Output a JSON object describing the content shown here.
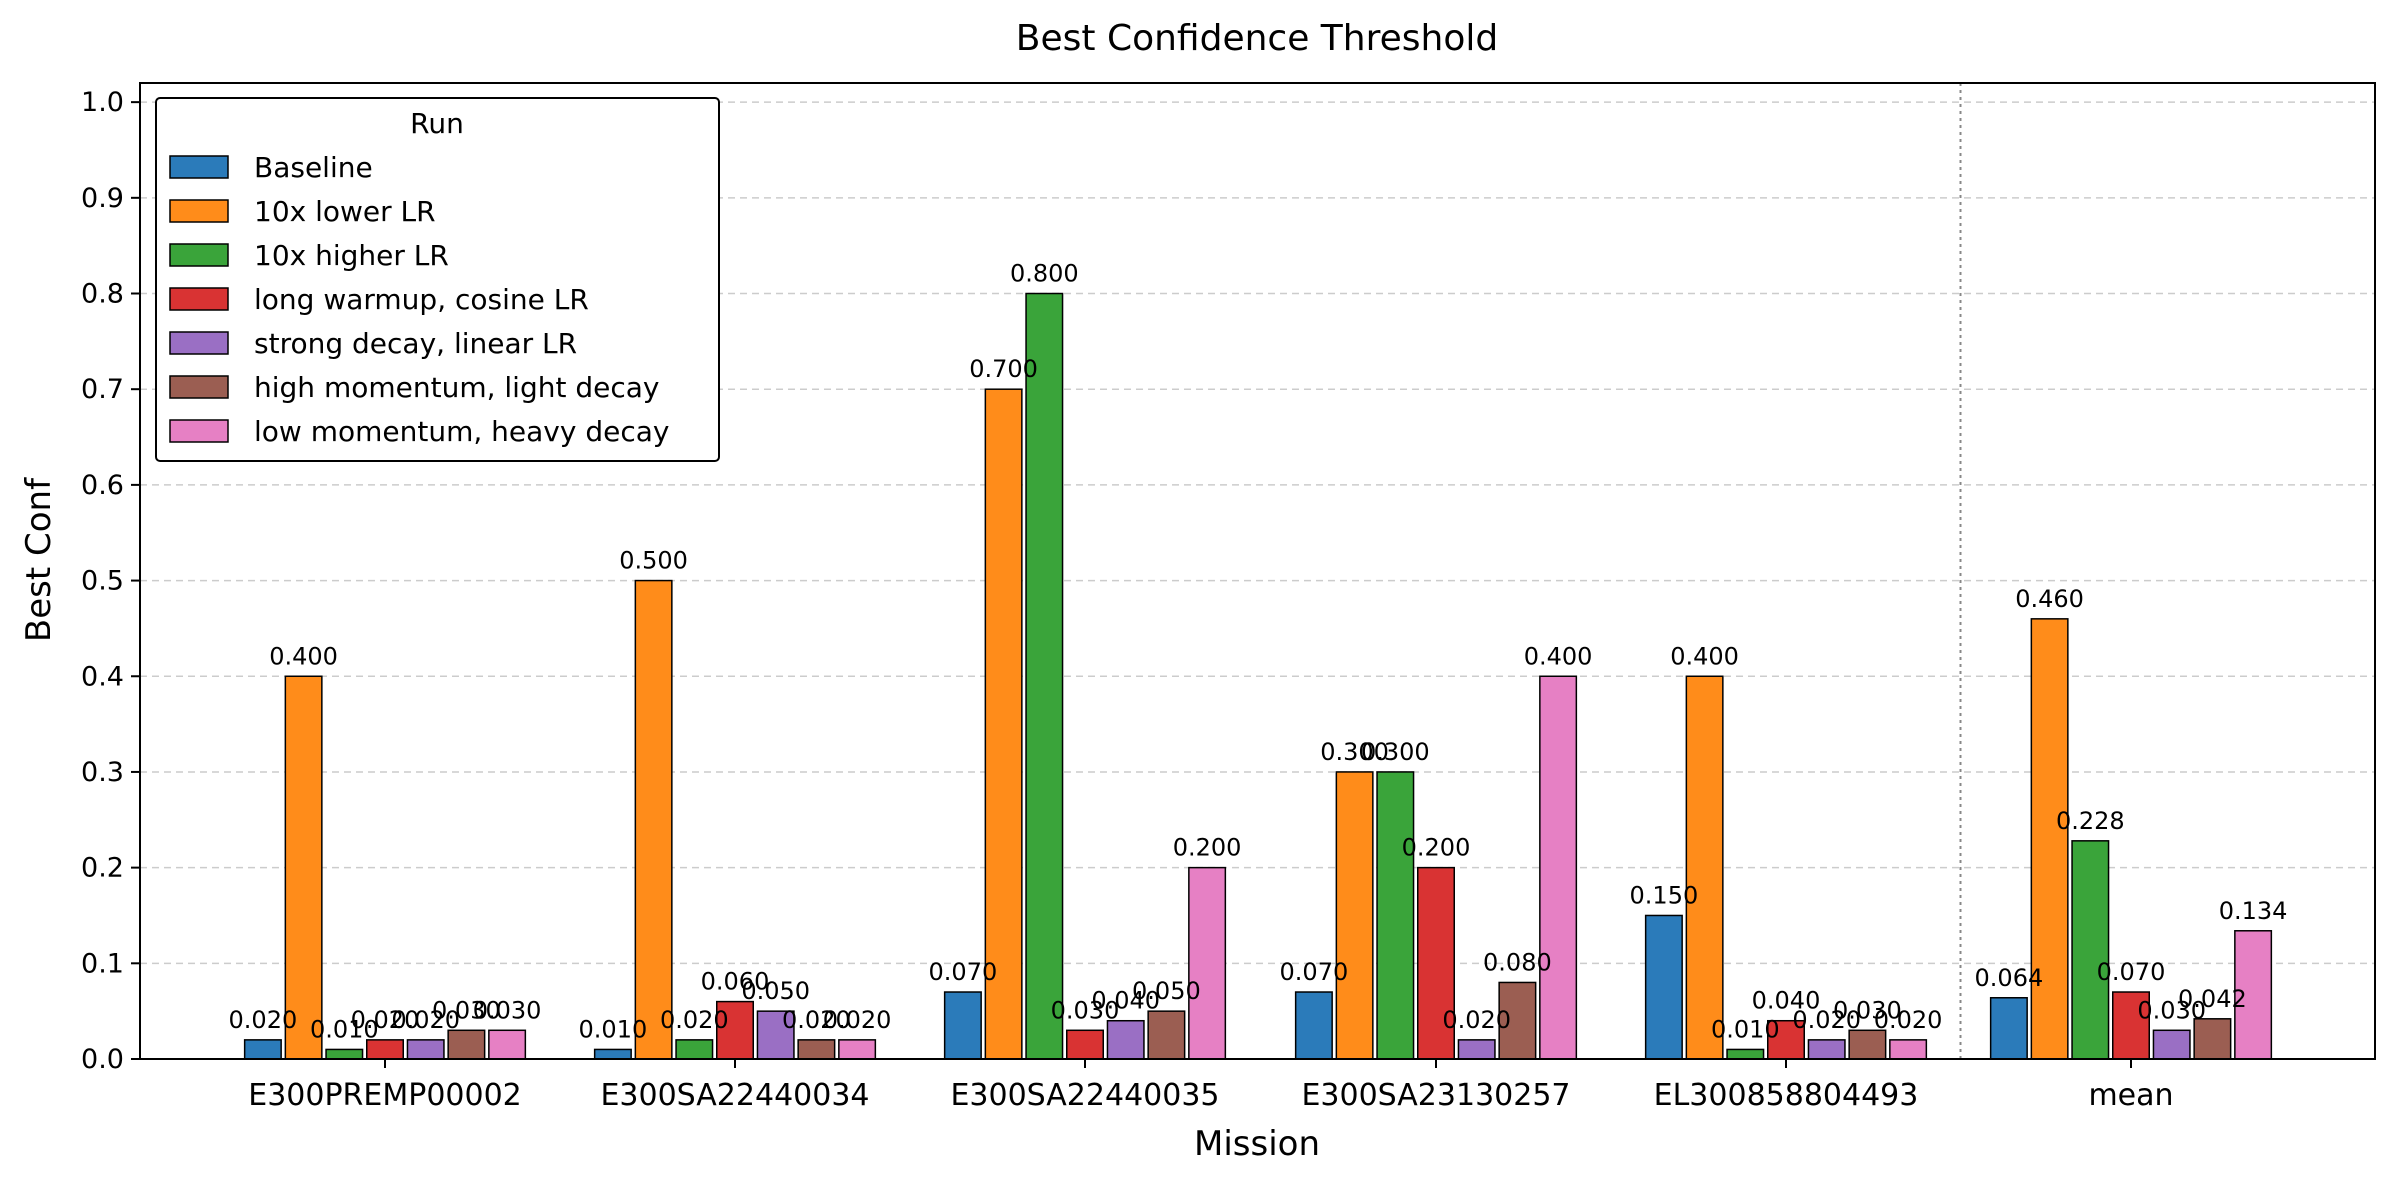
{
  "chart_data": {
    "type": "bar",
    "title": "Best Confidence Threshold",
    "xlabel": "Mission",
    "ylabel": "Best Conf",
    "ylim": [
      0,
      1.02
    ],
    "yticks": [
      "0.0",
      "0.1",
      "0.2",
      "0.3",
      "0.4",
      "0.5",
      "0.6",
      "0.7",
      "0.8",
      "0.9",
      "1.0"
    ],
    "grid": "y-dashed",
    "legend": {
      "title": "Run",
      "placement": "top-left"
    },
    "separator_before_category": "mean",
    "categories": [
      "E300PREMP00002",
      "E300SA22440034",
      "E300SA22440035",
      "E300SA23130257",
      "EL300858804493",
      "mean"
    ],
    "series": [
      {
        "name": "Baseline",
        "color": "#2b7bba",
        "values": [
          0.02,
          0.01,
          0.07,
          0.07,
          0.15,
          0.064
        ],
        "labels": [
          "0.020",
          "0.010",
          "0.070",
          "0.070",
          "0.150",
          "0.064"
        ]
      },
      {
        "name": "10x lower LR",
        "color": "#ff8c1a",
        "values": [
          0.4,
          0.5,
          0.7,
          0.3,
          0.4,
          0.46
        ],
        "labels": [
          "0.400",
          "0.500",
          "0.700",
          "0.300",
          "0.400",
          "0.460"
        ]
      },
      {
        "name": "10x higher LR",
        "color": "#3aa43a",
        "values": [
          0.01,
          0.02,
          0.8,
          0.3,
          0.01,
          0.228
        ],
        "labels": [
          "0.010",
          "0.020",
          "0.800",
          "0.300",
          "0.010",
          "0.228"
        ]
      },
      {
        "name": "long warmup, cosine LR",
        "color": "#d93333",
        "values": [
          0.02,
          0.06,
          0.03,
          0.2,
          0.04,
          0.07
        ],
        "labels": [
          "0.020",
          "0.060",
          "0.030",
          "0.200",
          "0.040",
          "0.070"
        ]
      },
      {
        "name": "strong decay, linear LR",
        "color": "#9a6fc4",
        "values": [
          0.02,
          0.05,
          0.04,
          0.02,
          0.02,
          0.03
        ],
        "labels": [
          "0.020",
          "0.050",
          "0.040",
          "0.020",
          "0.020",
          "0.030"
        ]
      },
      {
        "name": "high momentum, light decay",
        "color": "#9b5e52",
        "values": [
          0.03,
          0.02,
          0.05,
          0.08,
          0.03,
          0.042
        ],
        "labels": [
          "0.030",
          "0.020",
          "0.050",
          "0.080",
          "0.030",
          "0.042"
        ]
      },
      {
        "name": "low momentum, heavy decay",
        "color": "#e680c4",
        "values": [
          0.03,
          0.02,
          0.2,
          0.4,
          0.02,
          0.134
        ],
        "labels": [
          "0.030",
          "0.020",
          "0.200",
          "0.400",
          "0.020",
          "0.134"
        ]
      }
    ]
  }
}
